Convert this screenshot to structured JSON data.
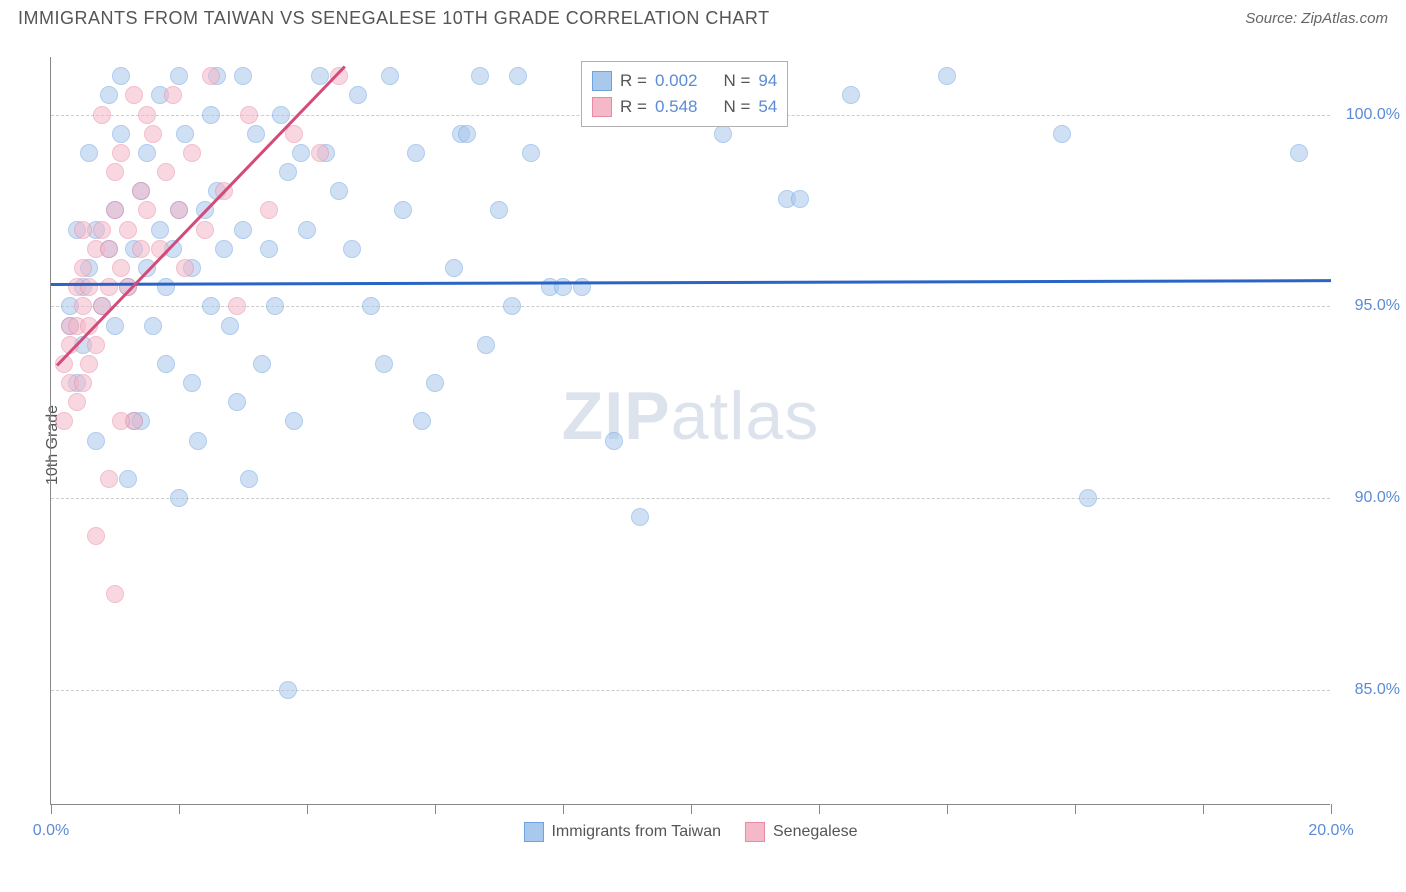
{
  "header": {
    "title": "IMMIGRANTS FROM TAIWAN VS SENEGALESE 10TH GRADE CORRELATION CHART",
    "source_prefix": "Source: ",
    "source_name": "ZipAtlas.com"
  },
  "chart": {
    "type": "scatter",
    "ylabel": "10th Grade",
    "background_color": "#ffffff",
    "grid_color": "#cccccc",
    "axis_color": "#888888",
    "label_color": "#5b8bd4",
    "text_color": "#555555",
    "xlim": [
      0,
      20
    ],
    "ylim": [
      82,
      101.5
    ],
    "yticks": [
      {
        "value": 100,
        "label": "100.0%"
      },
      {
        "value": 95,
        "label": "95.0%"
      },
      {
        "value": 90,
        "label": "90.0%"
      },
      {
        "value": 85,
        "label": "85.0%"
      }
    ],
    "xticks_minor": [
      0,
      2,
      4,
      6,
      8,
      10,
      12,
      14,
      16,
      18,
      20
    ],
    "xticks_labels": [
      {
        "value": 0,
        "label": "0.0%"
      },
      {
        "value": 20,
        "label": "20.0%"
      }
    ],
    "watermark": {
      "part1": "ZIP",
      "part2": "atlas"
    },
    "series": [
      {
        "name": "Immigrants from Taiwan",
        "fill": "#a8c8ec",
        "stroke": "#6fa3de",
        "trend": {
          "x1": 0,
          "y1": 95.6,
          "x2": 20,
          "y2": 95.7,
          "color": "#2a64c4"
        },
        "stats": {
          "r": "0.002",
          "n": "94"
        },
        "points": [
          [
            0.3,
            95.0
          ],
          [
            0.3,
            94.5
          ],
          [
            0.4,
            93.0
          ],
          [
            0.5,
            94.0
          ],
          [
            0.5,
            95.5
          ],
          [
            0.6,
            96.0
          ],
          [
            0.7,
            97.0
          ],
          [
            0.6,
            99.0
          ],
          [
            0.8,
            95.0
          ],
          [
            0.9,
            96.5
          ],
          [
            1.0,
            94.5
          ],
          [
            1.0,
            97.5
          ],
          [
            1.1,
            99.5
          ],
          [
            1.2,
            95.5
          ],
          [
            1.3,
            96.5
          ],
          [
            1.3,
            92.0
          ],
          [
            1.4,
            98.0
          ],
          [
            1.5,
            96.0
          ],
          [
            1.5,
            99.0
          ],
          [
            1.6,
            94.5
          ],
          [
            1.7,
            97.0
          ],
          [
            1.7,
            100.5
          ],
          [
            1.8,
            95.5
          ],
          [
            1.8,
            93.5
          ],
          [
            1.9,
            96.5
          ],
          [
            2.0,
            97.5
          ],
          [
            2.0,
            101.0
          ],
          [
            2.1,
            99.5
          ],
          [
            2.2,
            93.0
          ],
          [
            2.2,
            96.0
          ],
          [
            2.3,
            91.5
          ],
          [
            2.4,
            97.5
          ],
          [
            2.5,
            95.0
          ],
          [
            2.5,
            100.0
          ],
          [
            2.6,
            98.0
          ],
          [
            2.7,
            96.5
          ],
          [
            2.8,
            94.5
          ],
          [
            2.9,
            92.5
          ],
          [
            3.0,
            101.0
          ],
          [
            3.0,
            97.0
          ],
          [
            3.1,
            90.5
          ],
          [
            3.2,
            99.5
          ],
          [
            3.3,
            93.5
          ],
          [
            3.4,
            96.5
          ],
          [
            3.5,
            95.0
          ],
          [
            3.6,
            100.0
          ],
          [
            3.7,
            98.5
          ],
          [
            3.7,
            85.0
          ],
          [
            3.8,
            92.0
          ],
          [
            4.0,
            97.0
          ],
          [
            4.2,
            101.0
          ],
          [
            4.3,
            99.0
          ],
          [
            4.5,
            98.0
          ],
          [
            4.7,
            96.5
          ],
          [
            4.8,
            100.5
          ],
          [
            5.0,
            95.0
          ],
          [
            5.2,
            93.5
          ],
          [
            5.3,
            101.0
          ],
          [
            5.5,
            97.5
          ],
          [
            5.7,
            99.0
          ],
          [
            5.8,
            92.0
          ],
          [
            6.0,
            93.0
          ],
          [
            6.3,
            96.0
          ],
          [
            6.4,
            99.5
          ],
          [
            6.5,
            99.5
          ],
          [
            6.7,
            101.0
          ],
          [
            6.8,
            94.0
          ],
          [
            7.0,
            97.5
          ],
          [
            7.2,
            95.0
          ],
          [
            7.3,
            101.0
          ],
          [
            7.5,
            99.0
          ],
          [
            7.8,
            95.5
          ],
          [
            8.0,
            95.5
          ],
          [
            8.3,
            95.5
          ],
          [
            8.8,
            91.5
          ],
          [
            9.2,
            89.5
          ],
          [
            9.8,
            100.5
          ],
          [
            10.5,
            99.5
          ],
          [
            11.5,
            97.8
          ],
          [
            11.7,
            97.8
          ],
          [
            12.5,
            100.5
          ],
          [
            14.0,
            101.0
          ],
          [
            15.8,
            99.5
          ],
          [
            16.2,
            90.0
          ],
          [
            19.5,
            99.0
          ],
          [
            1.4,
            92.0
          ],
          [
            0.9,
            100.5
          ],
          [
            1.1,
            101.0
          ],
          [
            2.6,
            101.0
          ],
          [
            3.9,
            99.0
          ],
          [
            0.7,
            91.5
          ],
          [
            1.2,
            90.5
          ],
          [
            2.0,
            90.0
          ],
          [
            0.4,
            97.0
          ]
        ]
      },
      {
        "name": "Senegalese",
        "fill": "#f4b8c8",
        "stroke": "#e88aa5",
        "trend": {
          "x1": 0.1,
          "y1": 93.5,
          "x2": 4.6,
          "y2": 101.3,
          "color": "#d44a7a"
        },
        "stats": {
          "r": "0.548",
          "n": "54"
        },
        "points": [
          [
            0.2,
            92.0
          ],
          [
            0.2,
            93.5
          ],
          [
            0.3,
            93.0
          ],
          [
            0.3,
            94.0
          ],
          [
            0.3,
            94.5
          ],
          [
            0.4,
            92.5
          ],
          [
            0.4,
            94.5
          ],
          [
            0.4,
            95.5
          ],
          [
            0.5,
            93.0
          ],
          [
            0.5,
            95.0
          ],
          [
            0.5,
            96.0
          ],
          [
            0.5,
            97.0
          ],
          [
            0.6,
            93.5
          ],
          [
            0.6,
            94.5
          ],
          [
            0.6,
            95.5
          ],
          [
            0.7,
            94.0
          ],
          [
            0.7,
            96.5
          ],
          [
            0.7,
            89.0
          ],
          [
            0.8,
            95.0
          ],
          [
            0.8,
            97.0
          ],
          [
            0.8,
            100.0
          ],
          [
            0.9,
            95.5
          ],
          [
            0.9,
            96.5
          ],
          [
            0.9,
            90.5
          ],
          [
            1.0,
            97.5
          ],
          [
            1.0,
            98.5
          ],
          [
            1.0,
            87.5
          ],
          [
            1.1,
            96.0
          ],
          [
            1.1,
            99.0
          ],
          [
            1.2,
            95.5
          ],
          [
            1.2,
            97.0
          ],
          [
            1.3,
            100.5
          ],
          [
            1.3,
            92.0
          ],
          [
            1.4,
            96.5
          ],
          [
            1.4,
            98.0
          ],
          [
            1.5,
            97.5
          ],
          [
            1.5,
            100.0
          ],
          [
            1.6,
            99.5
          ],
          [
            1.7,
            96.5
          ],
          [
            1.8,
            98.5
          ],
          [
            1.9,
            100.5
          ],
          [
            2.0,
            97.5
          ],
          [
            2.1,
            96.0
          ],
          [
            2.2,
            99.0
          ],
          [
            2.4,
            97.0
          ],
          [
            2.5,
            101.0
          ],
          [
            2.7,
            98.0
          ],
          [
            2.9,
            95.0
          ],
          [
            3.1,
            100.0
          ],
          [
            3.4,
            97.5
          ],
          [
            3.8,
            99.5
          ],
          [
            4.2,
            99.0
          ],
          [
            4.5,
            101.0
          ],
          [
            1.1,
            92.0
          ]
        ]
      }
    ],
    "stats_box": {
      "r_label": "R =",
      "n_label": "N ="
    },
    "marker_radius": 9,
    "marker_opacity": 0.55,
    "title_fontsize": 18,
    "label_fontsize": 16
  }
}
